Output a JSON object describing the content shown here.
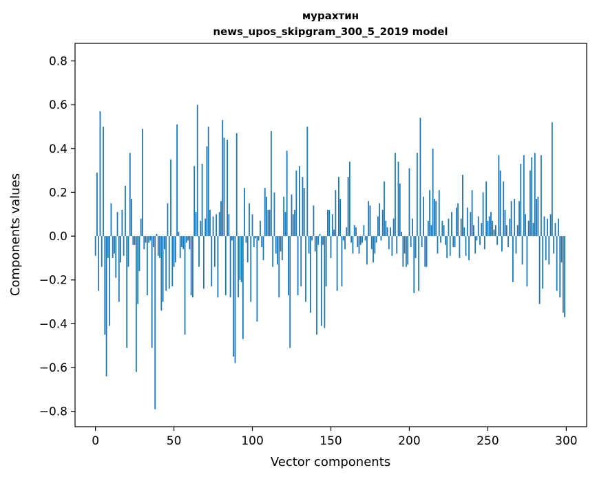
{
  "chart_data": {
    "type": "bar",
    "title": "мурахтин",
    "subtitle": "news_upos_skipgram_300_5_2019 model",
    "xlabel": "Vector components",
    "ylabel": "Components values",
    "xlim": [
      -13,
      313
    ],
    "ylim": [
      -0.87,
      0.88
    ],
    "xticks": [
      0,
      50,
      100,
      150,
      200,
      250,
      300
    ],
    "xtick_labels": [
      "0",
      "50",
      "100",
      "150",
      "200",
      "250",
      "300"
    ],
    "yticks": [
      -0.8,
      -0.6,
      -0.4,
      -0.2,
      0.0,
      0.2,
      0.4,
      0.6,
      0.8
    ],
    "ytick_labels": [
      "−0.8",
      "−0.6",
      "−0.4",
      "−0.2",
      "0.0",
      "0.2",
      "0.4",
      "0.6",
      "0.8"
    ],
    "bar_color": "#1f77b4",
    "x": [
      0,
      1,
      2,
      3,
      4,
      5,
      6,
      7,
      8,
      9,
      10,
      11,
      12,
      13,
      14,
      15,
      16,
      17,
      18,
      19,
      20,
      21,
      22,
      23,
      24,
      25,
      26,
      27,
      28,
      29,
      30,
      31,
      32,
      33,
      34,
      35,
      36,
      37,
      38,
      39,
      40,
      41,
      42,
      43,
      44,
      45,
      46,
      47,
      48,
      49,
      50,
      51,
      52,
      53,
      54,
      55,
      56,
      57,
      58,
      59,
      60,
      61,
      62,
      63,
      64,
      65,
      66,
      67,
      68,
      69,
      70,
      71,
      72,
      73,
      74,
      75,
      76,
      77,
      78,
      79,
      80,
      81,
      82,
      83,
      84,
      85,
      86,
      87,
      88,
      89,
      90,
      91,
      92,
      93,
      94,
      95,
      96,
      97,
      98,
      99,
      100,
      101,
      102,
      103,
      104,
      105,
      106,
      107,
      108,
      109,
      110,
      111,
      112,
      113,
      114,
      115,
      116,
      117,
      118,
      119,
      120,
      121,
      122,
      123,
      124,
      125,
      126,
      127,
      128,
      129,
      130,
      131,
      132,
      133,
      134,
      135,
      136,
      137,
      138,
      139,
      140,
      141,
      142,
      143,
      144,
      145,
      146,
      147,
      148,
      149,
      150,
      151,
      152,
      153,
      154,
      155,
      156,
      157,
      158,
      159,
      160,
      161,
      162,
      163,
      164,
      165,
      166,
      167,
      168,
      169,
      170,
      171,
      172,
      173,
      174,
      175,
      176,
      177,
      178,
      179,
      180,
      181,
      182,
      183,
      184,
      185,
      186,
      187,
      188,
      189,
      190,
      191,
      192,
      193,
      194,
      195,
      196,
      197,
      198,
      199,
      200,
      201,
      202,
      203,
      204,
      205,
      206,
      207,
      208,
      209,
      210,
      211,
      212,
      213,
      214,
      215,
      216,
      217,
      218,
      219,
      220,
      221,
      222,
      223,
      224,
      225,
      226,
      227,
      228,
      229,
      230,
      231,
      232,
      233,
      234,
      235,
      236,
      237,
      238,
      239,
      240,
      241,
      242,
      243,
      244,
      245,
      246,
      247,
      248,
      249,
      250,
      251,
      252,
      253,
      254,
      255,
      256,
      257,
      258,
      259,
      260,
      261,
      262,
      263,
      264,
      265,
      266,
      267,
      268,
      269,
      270,
      271,
      272,
      273,
      274,
      275,
      276,
      277,
      278,
      279,
      280,
      281,
      282,
      283,
      284,
      285,
      286,
      287,
      288,
      289,
      290,
      291,
      292,
      293,
      294,
      295,
      296,
      297,
      298,
      299
    ],
    "values": [
      -0.09,
      0.29,
      -0.25,
      0.57,
      -0.14,
      0.5,
      -0.45,
      -0.64,
      -0.1,
      -0.41,
      0.15,
      -0.1,
      -0.08,
      -0.19,
      0.11,
      -0.3,
      -0.12,
      0.12,
      -0.09,
      0.23,
      -0.51,
      -0.14,
      0.38,
      0.17,
      -0.04,
      -0.04,
      -0.62,
      -0.31,
      -0.16,
      0.08,
      0.49,
      -0.06,
      -0.03,
      -0.27,
      -0.03,
      -0.02,
      -0.51,
      -0.05,
      -0.79,
      0.01,
      -0.09,
      -0.1,
      -0.34,
      -0.3,
      -0.06,
      -0.25,
      0.15,
      -0.24,
      0.35,
      -0.23,
      -0.14,
      -0.12,
      0.51,
      0.02,
      -0.1,
      -0.05,
      -0.06,
      -0.45,
      -0.03,
      -0.02,
      -0.06,
      -0.27,
      -0.28,
      0.32,
      0.11,
      0.6,
      -0.14,
      0.07,
      0.33,
      -0.24,
      0.08,
      0.41,
      0.5,
      0.12,
      -0.23,
      0.09,
      -0.14,
      0.1,
      -0.28,
      0.11,
      0.16,
      0.53,
      0.45,
      -0.27,
      0.44,
      0.1,
      -0.28,
      -0.02,
      -0.55,
      -0.58,
      0.47,
      -0.28,
      -0.2,
      -0.21,
      -0.47,
      0.22,
      -0.03,
      -0.12,
      0.15,
      -0.3,
      0.1,
      -0.05,
      -0.01,
      -0.39,
      -0.02,
      0.07,
      -0.05,
      -0.11,
      0.22,
      0.18,
      0.12,
      0.12,
      0.48,
      -0.14,
      0.2,
      -0.08,
      -0.13,
      -0.28,
      -0.07,
      -0.11,
      0.18,
      0.11,
      0.39,
      -0.27,
      -0.51,
      0.19,
      0.1,
      0.12,
      0.3,
      -0.27,
      0.32,
      -0.23,
      0.27,
      0.22,
      -0.3,
      0.5,
      -0.08,
      -0.35,
      -0.02,
      0.14,
      -0.07,
      -0.45,
      -0.04,
      0.01,
      -0.41,
      -0.04,
      -0.42,
      -0.23,
      0.12,
      0.12,
      -0.1,
      0.1,
      0.03,
      0.21,
      -0.25,
      0.27,
      0.17,
      -0.23,
      -0.02,
      -0.06,
      0.04,
      0.27,
      0.34,
      -0.03,
      -0.08,
      0.05,
      0.04,
      -0.05,
      -0.08,
      -0.04,
      -0.03,
      0.05,
      -0.02,
      -0.13,
      0.16,
      0.14,
      -0.06,
      -0.12,
      -0.08,
      -0.03,
      0.09,
      0.15,
      -0.02,
      0.12,
      0.25,
      0.07,
      0.04,
      -0.06,
      0.04,
      -0.09,
      0.08,
      0.38,
      -0.08,
      0.34,
      0.24,
      0.02,
      -0.14,
      -0.08,
      -0.14,
      -0.13,
      0.31,
      -0.05,
      0.08,
      -0.26,
      -0.1,
      0.38,
      -0.25,
      0.54,
      -0.05,
      0.18,
      -0.14,
      -0.14,
      0.07,
      0.21,
      0.05,
      0.4,
      0.17,
      0.16,
      -0.08,
      0.21,
      -0.03,
      0.07,
      0.05,
      -0.04,
      -0.1,
      0.08,
      -0.09,
      0.11,
      -0.05,
      -0.05,
      0.13,
      0.15,
      -0.1,
      0.08,
      0.28,
      0.04,
      -0.09,
      0.13,
      -0.11,
      0.11,
      0.21,
      0.05,
      -0.08,
      -0.02,
      0.09,
      -0.04,
      0.06,
      0.2,
      -0.06,
      0.25,
      0.07,
      0.09,
      0.11,
      0.07,
      0.03,
      0.05,
      -0.04,
      0.37,
      0.3,
      -0.07,
      0.25,
      0.12,
      0.05,
      -0.05,
      0.08,
      0.16,
      -0.21,
      0.17,
      -0.08,
      0.05,
      0.16,
      0.33,
      -0.13,
      0.37,
      0.1,
      -0.23,
      0.07,
      0.3,
      0.36,
      0.06,
      0.38,
      0.17,
      0.18,
      -0.31,
      0.37,
      -0.24,
      0.09,
      -0.11,
      0.08,
      -0.13,
      0.1,
      0.52,
      -0.08,
      0.06,
      -0.25,
      0.08,
      -0.28,
      -0.12,
      -0.35,
      -0.37
    ]
  }
}
